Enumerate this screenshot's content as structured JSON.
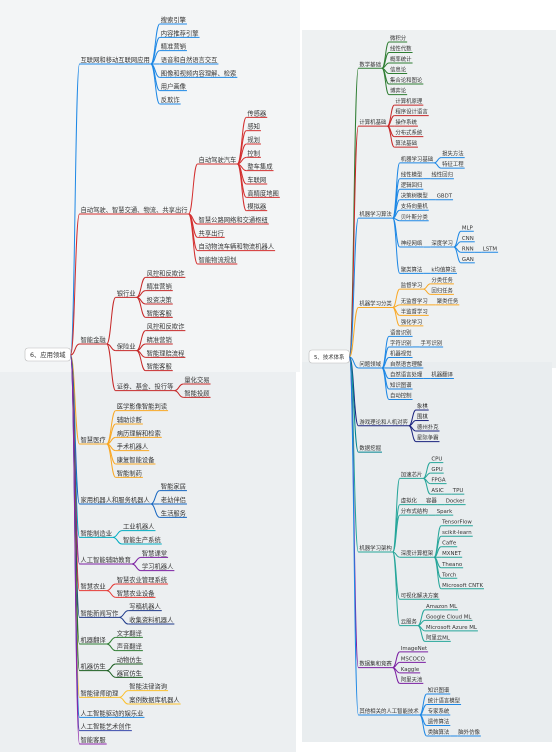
{
  "left": {
    "root": "6、应用领域",
    "children": [
      {
        "label": "互联网和移动互联网应用",
        "children": [
          {
            "label": "搜索引擎"
          },
          {
            "label": "内容推荐引擎"
          },
          {
            "label": "精准营销"
          },
          {
            "label": "语音和自然语言交互"
          },
          {
            "label": "图像和视频内容理解、检索"
          },
          {
            "label": "用户画像"
          },
          {
            "label": "反欺诈"
          }
        ]
      },
      {
        "label": "自动驾驶、智慧交通、物流、共享出行",
        "children": [
          {
            "label": "自动驾驶汽车",
            "children": [
              {
                "label": "传感器"
              },
              {
                "label": "感知"
              },
              {
                "label": "规划"
              },
              {
                "label": "控制"
              },
              {
                "label": "整车集成"
              },
              {
                "label": "车联网"
              },
              {
                "label": "高精度地图"
              },
              {
                "label": "模拟器"
              }
            ]
          },
          {
            "label": "智慧公路网络和交通枢纽"
          },
          {
            "label": "共享出行"
          },
          {
            "label": "自动物流车辆和物流机器人"
          },
          {
            "label": "智能物流规划"
          }
        ]
      },
      {
        "label": "智能金融",
        "children": [
          {
            "label": "银行业",
            "children": [
              {
                "label": "风控和反欺诈"
              },
              {
                "label": "精准营销"
              },
              {
                "label": "投资决策"
              },
              {
                "label": "智能客服"
              }
            ]
          },
          {
            "label": "保险业",
            "children": [
              {
                "label": "风控和反欺诈"
              },
              {
                "label": "精准营销"
              },
              {
                "label": "智能理赔流程"
              },
              {
                "label": "智能客服"
              }
            ]
          },
          {
            "label": "证券、基金、投行等",
            "children": [
              {
                "label": "量化交易"
              },
              {
                "label": "智能投顾"
              }
            ]
          }
        ]
      },
      {
        "label": "智慧医疗",
        "children": [
          {
            "label": "医学影像智能判读"
          },
          {
            "label": "辅助诊断"
          },
          {
            "label": "病历理解和检索"
          },
          {
            "label": "手术机器人"
          },
          {
            "label": "康复智能设备"
          },
          {
            "label": "智能制药"
          }
        ]
      },
      {
        "label": "家用机器人和服务机器人",
        "children": [
          {
            "label": "智能家居"
          },
          {
            "label": "老幼伴侣"
          },
          {
            "label": "生活服务"
          }
        ]
      },
      {
        "label": "智能制造业",
        "children": [
          {
            "label": "工业机器人"
          },
          {
            "label": "智能生产系统"
          }
        ]
      },
      {
        "label": "人工智能辅助教育",
        "children": [
          {
            "label": "智慧课堂"
          },
          {
            "label": "学习机器人"
          }
        ]
      },
      {
        "label": "智慧农业",
        "children": [
          {
            "label": "智慧农业管理系统"
          },
          {
            "label": "智慧农业设备"
          }
        ]
      },
      {
        "label": "智能新闻写作",
        "children": [
          {
            "label": "写稿机器人"
          },
          {
            "label": "收集资料机器人"
          }
        ]
      },
      {
        "label": "机器翻译",
        "children": [
          {
            "label": "文字翻译"
          },
          {
            "label": "声音翻译"
          }
        ]
      },
      {
        "label": "机器仿生",
        "children": [
          {
            "label": "动物仿生"
          },
          {
            "label": "器官仿生"
          }
        ]
      },
      {
        "label": "智能律师助理",
        "children": [
          {
            "label": "智能法律咨询"
          },
          {
            "label": "案例数据库机器人"
          }
        ]
      },
      {
        "label": "人工智能驱动的娱乐业"
      },
      {
        "label": "人工智能艺术创作"
      },
      {
        "label": "智能客服"
      }
    ]
  },
  "right": {
    "root": "5、技术体系",
    "children": [
      {
        "label": "数学基础",
        "children": [
          {
            "label": "微积分"
          },
          {
            "label": "线性代数"
          },
          {
            "label": "概率统计"
          },
          {
            "label": "信息论"
          },
          {
            "label": "集合论和图论"
          },
          {
            "label": "博弈论"
          }
        ]
      },
      {
        "label": "计算机基础",
        "children": [
          {
            "label": "计算机原理"
          },
          {
            "label": "程序设计语言"
          },
          {
            "label": "操作系统"
          },
          {
            "label": "分布式系统"
          },
          {
            "label": "算法基础"
          }
        ]
      },
      {
        "label": "机器学习算法",
        "children": [
          {
            "label": "机器学习基础",
            "children": [
              {
                "label": "损失方法"
              },
              {
                "label": "特征工程"
              }
            ]
          },
          {
            "label": "线性模型",
            "children": [
              {
                "label": "线性回归"
              }
            ]
          },
          {
            "label": "逻辑回归"
          },
          {
            "label": "决策树模型",
            "children": [
              {
                "label": "GBDT"
              }
            ]
          },
          {
            "label": "支持向量机"
          },
          {
            "label": "贝叶斯分类"
          },
          {
            "label": "神经网络",
            "children": [
              {
                "label": "深度学习",
                "children": [
                  {
                    "label": "MLP"
                  },
                  {
                    "label": "CNN"
                  },
                  {
                    "label": "RNN",
                    "children": [
                      {
                        "label": "LSTM"
                      }
                    ]
                  },
                  {
                    "label": "GAN"
                  }
                ]
              }
            ]
          },
          {
            "label": "聚类算法",
            "children": [
              {
                "label": "k均值算法"
              }
            ]
          }
        ]
      },
      {
        "label": "机器学习分类",
        "children": [
          {
            "label": "监督学习",
            "children": [
              {
                "label": "分类任务"
              },
              {
                "label": "回归任务"
              }
            ]
          },
          {
            "label": "无监督学习",
            "children": [
              {
                "label": "聚类任务"
              }
            ]
          },
          {
            "label": "半监督学习"
          },
          {
            "label": "强化学习"
          }
        ]
      },
      {
        "label": "问题领域",
        "children": [
          {
            "label": "语音识别"
          },
          {
            "label": "字符识别",
            "children": [
              {
                "label": "手写识别"
              }
            ]
          },
          {
            "label": "机器视觉"
          },
          {
            "label": "自然语言理解"
          },
          {
            "label": "自然语言处理",
            "children": [
              {
                "label": "机器翻译"
              }
            ]
          },
          {
            "label": "知识图谱"
          },
          {
            "label": "自动控制"
          }
        ]
      },
      {
        "label": "游戏理论和人机对弈",
        "children": [
          {
            "label": "象棋"
          },
          {
            "label": "围棋"
          },
          {
            "label": "德州扑克"
          },
          {
            "label": "星际争霸"
          }
        ]
      },
      {
        "label": "数据挖掘"
      },
      {
        "label": "机器学习架构",
        "children": [
          {
            "label": "加速芯片",
            "children": [
              {
                "label": "CPU"
              },
              {
                "label": "GPU"
              },
              {
                "label": "FPGA"
              },
              {
                "label": "ASIC",
                "children": [
                  {
                    "label": "TPU"
                  }
                ]
              }
            ]
          },
          {
            "label": "虚拟化",
            "children": [
              {
                "label": "容器",
                "children": [
                  {
                    "label": "Docker"
                  }
                ]
              }
            ]
          },
          {
            "label": "分布式结构",
            "children": [
              {
                "label": "Spark"
              }
            ]
          },
          {
            "label": "深度计算框架",
            "children": [
              {
                "label": "TensorFlow"
              },
              {
                "label": "scikit-learn"
              },
              {
                "label": "Caffe"
              },
              {
                "label": "MXNET"
              },
              {
                "label": "Theano"
              },
              {
                "label": "Torch"
              },
              {
                "label": "Microsoft CNTK"
              }
            ]
          },
          {
            "label": "可视化解决方案"
          },
          {
            "label": "云服务",
            "children": [
              {
                "label": "Amazon ML"
              },
              {
                "label": "Google Cloud ML"
              },
              {
                "label": "Microsoft Azure ML"
              },
              {
                "label": "阿里云ML"
              }
            ]
          }
        ]
      },
      {
        "label": "数据集和竞赛",
        "children": [
          {
            "label": "ImageNet"
          },
          {
            "label": "MSCOCO"
          },
          {
            "label": "Kaggle"
          },
          {
            "label": "阿里天池"
          }
        ]
      },
      {
        "label": "其他相关的人工智能技术",
        "children": [
          {
            "label": "知识图谱"
          },
          {
            "label": "统计语言模型"
          },
          {
            "label": "专家系统"
          },
          {
            "label": "遗传算法"
          },
          {
            "label": "类脑算法",
            "children": [
              {
                "label": "脑外仿像"
              }
            ]
          }
        ]
      }
    ]
  }
}
